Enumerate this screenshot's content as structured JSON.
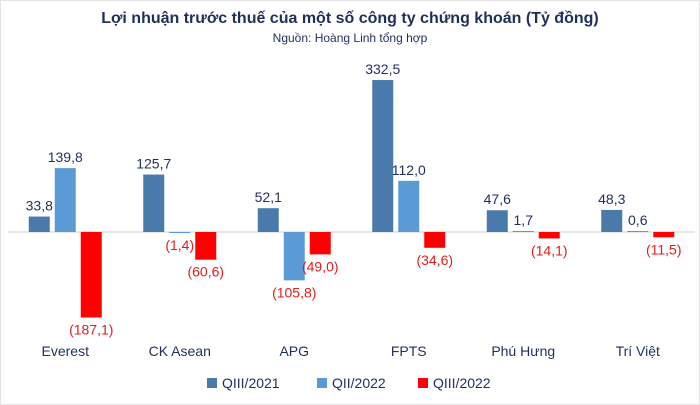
{
  "chart_data": {
    "type": "bar",
    "title": "Lợi nhuận trước thuế của một số công ty chứng khoán (Tỷ đồng)",
    "subtitle": "Nguồn: Hoàng Linh tổng hợp",
    "categories": [
      "Everest",
      "CK Asean",
      "APG",
      "FPTS",
      "Phú Hưng",
      "Trí Việt"
    ],
    "series": [
      {
        "name": "QIII/2021",
        "color": "#4a7aab",
        "values": [
          33.8,
          125.7,
          52.1,
          332.5,
          47.6,
          48.3
        ],
        "labels": [
          "33,8",
          "125,7",
          "52,1",
          "332,5",
          "47,6",
          "48,3"
        ]
      },
      {
        "name": "QII/2022",
        "color": "#5b9bd5",
        "values": [
          139.8,
          -1.4,
          -105.8,
          112.0,
          1.7,
          0.6
        ],
        "labels": [
          "139,8",
          "(1,4)",
          "(105,8)",
          "112,0",
          "1,7",
          "0,6"
        ]
      },
      {
        "name": "QIII/2022",
        "color": "#ff0000",
        "values": [
          -187.1,
          -60.6,
          -49.0,
          -34.6,
          -14.1,
          -11.5
        ],
        "labels": [
          "(187,1)",
          "(60,6)",
          "(49,0)",
          "(34,6)",
          "(14,1)",
          "(11,5)"
        ]
      }
    ],
    "positive_label_color": "#1f2f5c",
    "negative_label_color": "#e31b1b",
    "ylim": [
      -200,
      340
    ],
    "grid": false,
    "legend_position": "bottom"
  }
}
